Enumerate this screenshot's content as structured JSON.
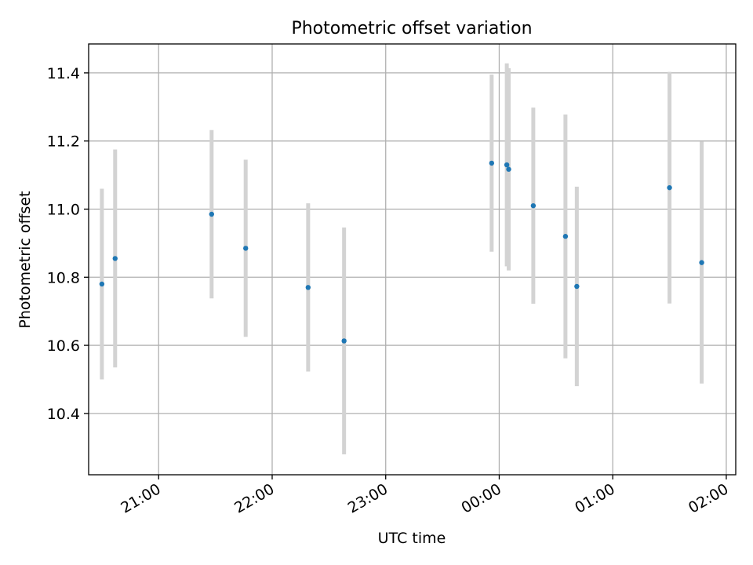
{
  "chart_data": {
    "type": "scatter",
    "title": "Photometric offset variation",
    "xlabel": "UTC time",
    "ylabel": "Photometric offset",
    "x_ticks": [
      "21:00",
      "22:00",
      "23:00",
      "00:00",
      "01:00",
      "02:00"
    ],
    "y_ticks": [
      "10.4",
      "10.6",
      "10.8",
      "11.0",
      "11.2",
      "11.4"
    ],
    "grid": true,
    "xlim": [
      "20:23",
      "02:05"
    ],
    "ylim": [
      10.22,
      11.485
    ],
    "series": [
      {
        "name": "",
        "color": "#1f77b4",
        "errorbar_color": "#d3d3d3",
        "points": [
          {
            "time": "20:30",
            "y": 10.78,
            "err": 0.28
          },
          {
            "time": "20:37",
            "y": 10.855,
            "err": 0.32
          },
          {
            "time": "21:28",
            "y": 10.985,
            "err": 0.247
          },
          {
            "time": "21:46",
            "y": 10.885,
            "err": 0.26
          },
          {
            "time": "22:19",
            "y": 10.77,
            "err": 0.247
          },
          {
            "time": "22:38",
            "y": 10.613,
            "err": 0.333
          },
          {
            "time": "23:56",
            "y": 11.135,
            "err": 0.26
          },
          {
            "time": "00:04",
            "y": 11.13,
            "err": 0.298
          },
          {
            "time": "00:05",
            "y": 11.117,
            "err": 0.297
          },
          {
            "time": "00:18",
            "y": 11.01,
            "err": 0.288
          },
          {
            "time": "00:35",
            "y": 10.92,
            "err": 0.358
          },
          {
            "time": "00:41",
            "y": 10.773,
            "err": 0.293
          },
          {
            "time": "01:30",
            "y": 11.063,
            "err": 0.34
          },
          {
            "time": "01:47",
            "y": 10.843,
            "err": 0.355
          }
        ]
      }
    ]
  }
}
